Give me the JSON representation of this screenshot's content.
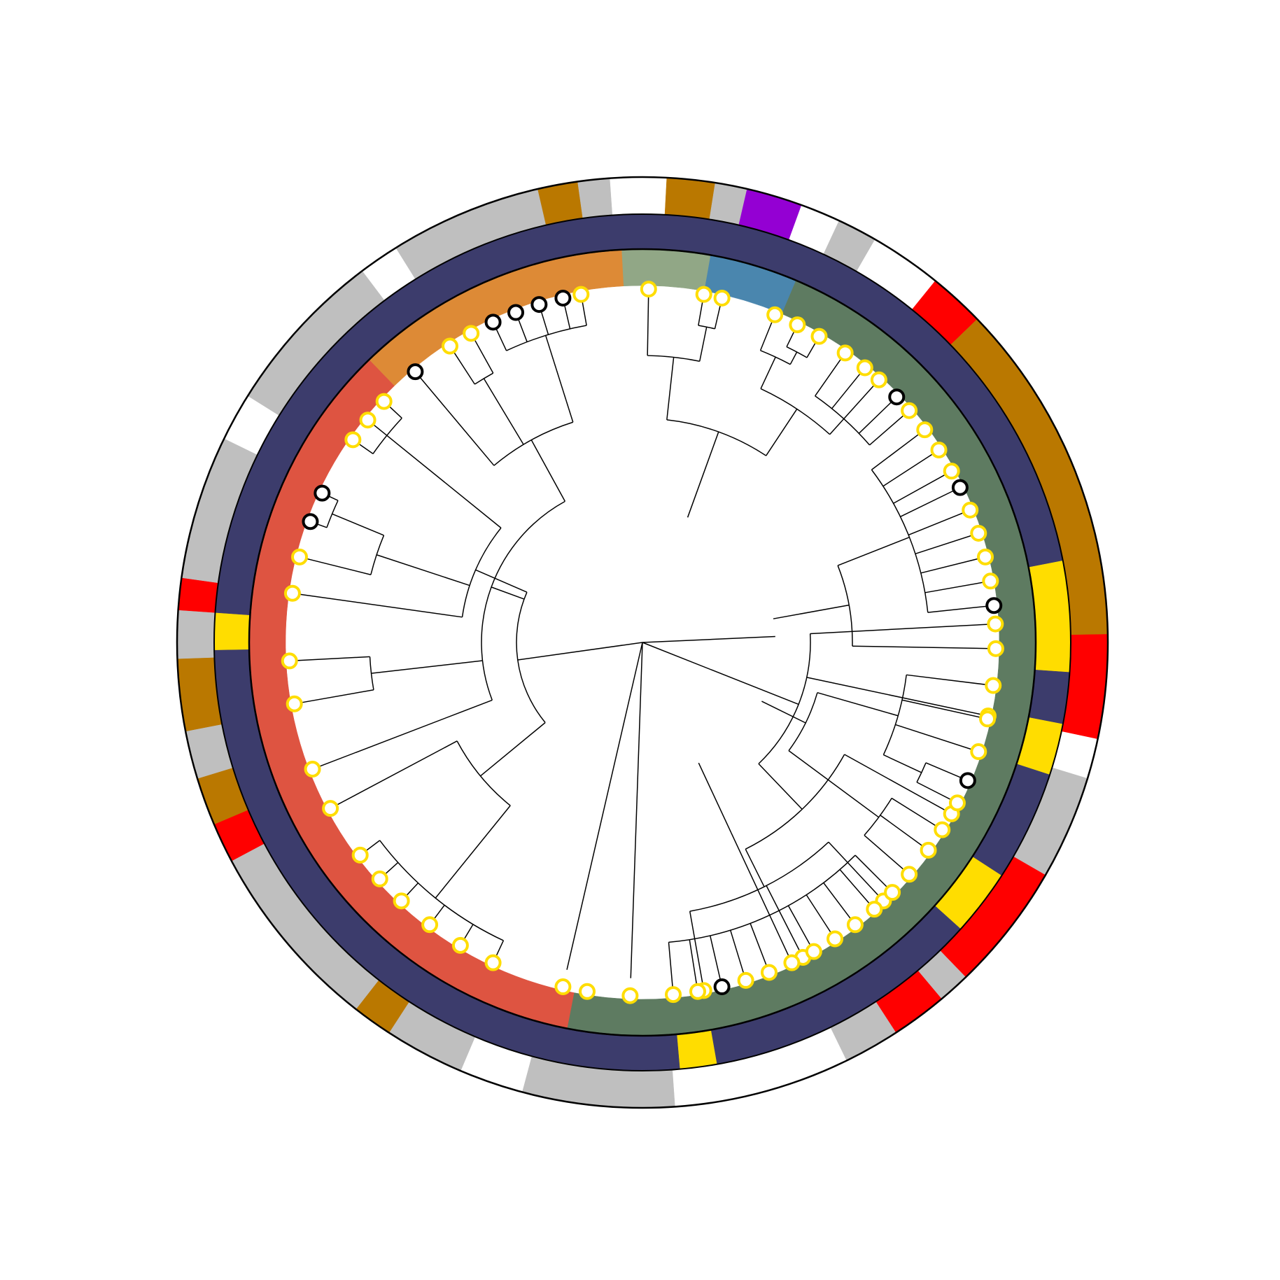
{
  "chart_data": {
    "type": "circular-phylogenetic-tree",
    "title": "",
    "tip_count": 77,
    "clade_colors": {
      "Red clade": "#de5441",
      "Orange clade": "#dd8a36",
      "Sage clade": "#91a786",
      "Blue clade": "#4a86ae",
      "Green clade": "#5e7b61"
    },
    "node_marker_colors": {
      "yellow-ring": "#ffdd00",
      "black-ring": "#000000"
    },
    "ring2_colors": {
      "navy": "#3c3c6c",
      "yellow": "#ffdd00"
    },
    "ring3_colors": {
      "white": "#ffffff",
      "grey": "#bfbfbf",
      "brown": "#ba7800",
      "red": "#ff0000",
      "purple": "#9400d3"
    },
    "ring1_segments": [
      {
        "color": "#de5441",
        "span_deg": 125
      },
      {
        "color": "#dd8a36",
        "span_deg": 41
      },
      {
        "color": "#91a786",
        "span_deg": 13
      },
      {
        "color": "#4a86ae",
        "span_deg": 13
      },
      {
        "color": "#5e7b61",
        "span_deg": 168
      }
    ],
    "ring2_segments": [
      {
        "color": "#3c3c6c",
        "span_deg": 93
      },
      {
        "color": "#ffdd00",
        "span_deg": 5
      },
      {
        "color": "#3c3c6c",
        "span_deg": 165
      },
      {
        "color": "#ffdd00",
        "span_deg": 15
      },
      {
        "color": "#3c3c6c",
        "span_deg": 7
      },
      {
        "color": "#ffdd00",
        "span_deg": 7
      },
      {
        "color": "#3c3c6c",
        "span_deg": 15
      },
      {
        "color": "#ffdd00",
        "span_deg": 9
      },
      {
        "color": "#3c3c6c",
        "span_deg": 38
      },
      {
        "color": "#ffdd00",
        "span_deg": 5
      },
      {
        "color": "#3c3c6c",
        "span_deg": 1
      }
    ],
    "ring3_segments": [
      {
        "color": "#bfbfbf",
        "span_deg": 19
      },
      {
        "color": "#ffffff",
        "span_deg": 8
      },
      {
        "color": "#bfbfbf",
        "span_deg": 10
      },
      {
        "color": "#ba7800",
        "span_deg": 5
      },
      {
        "color": "#bfbfbf",
        "span_deg": 24
      },
      {
        "color": "#ff0000",
        "span_deg": 5
      },
      {
        "color": "#ba7800",
        "span_deg": 6
      },
      {
        "color": "#bfbfbf",
        "span_deg": 6
      },
      {
        "color": "#ba7800",
        "span_deg": 9
      },
      {
        "color": "#bfbfbf",
        "span_deg": 6
      },
      {
        "color": "#ff0000",
        "span_deg": 4
      },
      {
        "color": "#bfbfbf",
        "span_deg": 18
      },
      {
        "color": "#ffffff",
        "span_deg": 6
      },
      {
        "color": "#bfbfbf",
        "span_deg": 21
      },
      {
        "color": "#ffffff",
        "span_deg": 5
      },
      {
        "color": "#bfbfbf",
        "span_deg": 19
      },
      {
        "color": "#ba7800",
        "span_deg": 5
      },
      {
        "color": "#bfbfbf",
        "span_deg": 4
      },
      {
        "color": "#ffffff",
        "span_deg": 7
      },
      {
        "color": "#ba7800",
        "span_deg": 6
      },
      {
        "color": "#bfbfbf",
        "span_deg": 4
      },
      {
        "color": "#9400d3",
        "span_deg": 7
      },
      {
        "color": "#ffffff",
        "span_deg": 5
      },
      {
        "color": "#bfbfbf",
        "span_deg": 5
      },
      {
        "color": "#ffffff",
        "span_deg": 9
      },
      {
        "color": "#ff0000",
        "span_deg": 7
      },
      {
        "color": "#ba7800",
        "span_deg": 43
      },
      {
        "color": "#ff0000",
        "span_deg": 13
      },
      {
        "color": "#ffffff",
        "span_deg": 5
      },
      {
        "color": "#bfbfbf",
        "span_deg": 13
      },
      {
        "color": "#ff0000",
        "span_deg": 16
      },
      {
        "color": "#bfbfbf",
        "span_deg": 4
      },
      {
        "color": "#ff0000",
        "span_deg": 7
      },
      {
        "color": "#bfbfbf",
        "span_deg": 7
      },
      {
        "color": "#ffffff",
        "span_deg": 5
      }
    ],
    "tips": [
      {
        "id": 1,
        "angle_deg": 87,
        "marker": "yellow"
      },
      {
        "id": 2,
        "angle_deg": 102,
        "marker": "yellow"
      },
      {
        "id": 3,
        "angle_deg": 119,
        "marker": "yellow"
      },
      {
        "id": 4,
        "angle_deg": 137,
        "marker": "yellow"
      },
      {
        "id": 5,
        "angle_deg": 153,
        "marker": "yellow"
      },
      {
        "id": 6,
        "angle_deg": 170,
        "marker": "yellow"
      },
      {
        "id": 7,
        "angle_deg": 189,
        "marker": "yellow"
      },
      {
        "id": 8,
        "angle_deg": 205,
        "marker": "yellow"
      },
      {
        "id": 9,
        "angle_deg": 211,
        "marker": "yellow"
      },
      {
        "id": 10,
        "angle_deg": 217,
        "marker": "yellow"
      },
      {
        "id": 11,
        "angle_deg": 223,
        "marker": "yellow"
      },
      {
        "id": 12,
        "angle_deg": 228,
        "marker": "yellow"
      },
      {
        "id": 13,
        "angle_deg": 233,
        "marker": "yellow"
      },
      {
        "id": 14,
        "angle_deg": 242,
        "marker": "yellow"
      },
      {
        "id": 15,
        "angle_deg": 249,
        "marker": "yellow"
      },
      {
        "id": 16,
        "angle_deg": 260,
        "marker": "yellow"
      },
      {
        "id": 17,
        "angle_deg": 267,
        "marker": "yellow"
      },
      {
        "id": 18,
        "angle_deg": 278,
        "marker": "yellow"
      },
      {
        "id": 19,
        "angle_deg": 284,
        "marker": "yellow"
      },
      {
        "id": 20,
        "angle_deg": 290,
        "marker": "black"
      },
      {
        "id": 21,
        "angle_deg": 295,
        "marker": "black"
      },
      {
        "id": 22,
        "angle_deg": 305,
        "marker": "yellow"
      },
      {
        "id": 23,
        "angle_deg": 309,
        "marker": "yellow"
      },
      {
        "id": 24,
        "angle_deg": 313,
        "marker": "yellow"
      },
      {
        "id": 25,
        "angle_deg": 320,
        "marker": "black"
      },
      {
        "id": 26,
        "angle_deg": 327,
        "marker": "yellow"
      },
      {
        "id": 27,
        "angle_deg": 331,
        "marker": "yellow"
      },
      {
        "id": 28,
        "angle_deg": 335,
        "marker": "black"
      },
      {
        "id": 29,
        "angle_deg": 339,
        "marker": "black"
      },
      {
        "id": 30,
        "angle_deg": 343,
        "marker": "black"
      },
      {
        "id": 31,
        "angle_deg": 347,
        "marker": "black"
      },
      {
        "id": 32,
        "angle_deg": 350,
        "marker": "yellow"
      },
      {
        "id": 33,
        "angle_deg": 1,
        "marker": "yellow"
      },
      {
        "id": 34,
        "angle_deg": 10,
        "marker": "yellow"
      },
      {
        "id": 35,
        "angle_deg": 13,
        "marker": "yellow"
      },
      {
        "id": 36,
        "angle_deg": 22,
        "marker": "yellow"
      },
      {
        "id": 37,
        "angle_deg": 26,
        "marker": "yellow"
      },
      {
        "id": 38,
        "angle_deg": 30,
        "marker": "yellow"
      },
      {
        "id": 39,
        "angle_deg": 35,
        "marker": "yellow"
      },
      {
        "id": 40,
        "angle_deg": 39,
        "marker": "yellow"
      },
      {
        "id": 41,
        "angle_deg": 42,
        "marker": "yellow"
      },
      {
        "id": 42,
        "angle_deg": 46,
        "marker": "black"
      },
      {
        "id": 43,
        "angle_deg": 49,
        "marker": "yellow"
      },
      {
        "id": 44,
        "angle_deg": 53,
        "marker": "yellow"
      },
      {
        "id": 45,
        "angle_deg": 57,
        "marker": "yellow"
      },
      {
        "id": 46,
        "angle_deg": 61,
        "marker": "yellow"
      },
      {
        "id": 47,
        "angle_deg": 64,
        "marker": "black"
      },
      {
        "id": 48,
        "angle_deg": 68,
        "marker": "yellow"
      },
      {
        "id": 49,
        "angle_deg": 72,
        "marker": "yellow"
      },
      {
        "id": 50,
        "angle_deg": 76,
        "marker": "yellow"
      },
      {
        "id": 51,
        "angle_deg": 80,
        "marker": "yellow"
      },
      {
        "id": 52,
        "angle_deg": 84,
        "marker": "black"
      },
      {
        "id": 53,
        "angle_deg": 91,
        "marker": "yellow"
      },
      {
        "id": 54,
        "angle_deg": 97,
        "marker": "yellow"
      },
      {
        "id": 55,
        "angle_deg": 102.5,
        "marker": "yellow"
      },
      {
        "id": 56,
        "angle_deg": 108,
        "marker": "yellow"
      },
      {
        "id": 57,
        "angle_deg": 113,
        "marker": "black"
      },
      {
        "id": 58,
        "angle_deg": 117,
        "marker": "yellow"
      },
      {
        "id": 59,
        "angle_deg": 122,
        "marker": "yellow"
      },
      {
        "id": 60,
        "angle_deg": 126,
        "marker": "yellow"
      },
      {
        "id": 61,
        "angle_deg": 131,
        "marker": "yellow"
      },
      {
        "id": 62,
        "angle_deg": 135,
        "marker": "yellow"
      },
      {
        "id": 63,
        "angle_deg": 139,
        "marker": "yellow"
      },
      {
        "id": 64,
        "angle_deg": 143,
        "marker": "yellow"
      },
      {
        "id": 65,
        "angle_deg": 147,
        "marker": "yellow"
      },
      {
        "id": 66,
        "angle_deg": 151,
        "marker": "yellow"
      },
      {
        "id": 67,
        "angle_deg": 155,
        "marker": "yellow"
      },
      {
        "id": 68,
        "angle_deg": 159,
        "marker": "yellow"
      },
      {
        "id": 69,
        "angle_deg": 163,
        "marker": "yellow"
      },
      {
        "id": 70,
        "angle_deg": 167,
        "marker": "black"
      },
      {
        "id": 71,
        "angle_deg": 171,
        "marker": "yellow"
      },
      {
        "id": 72,
        "angle_deg": 175,
        "marker": "yellow"
      },
      {
        "id": 73,
        "angle_deg": 182,
        "marker": "yellow"
      },
      {
        "id": 74,
        "angle_deg": 193,
        "marker": "yellow"
      },
      {
        "id": 75,
        "angle_deg": 199,
        "marker": "yellow"
      },
      {
        "id": 76,
        "angle_deg": 266,
        "marker": "yellow"
      },
      {
        "id": 77,
        "angle_deg": 244,
        "marker": "yellow"
      }
    ]
  }
}
